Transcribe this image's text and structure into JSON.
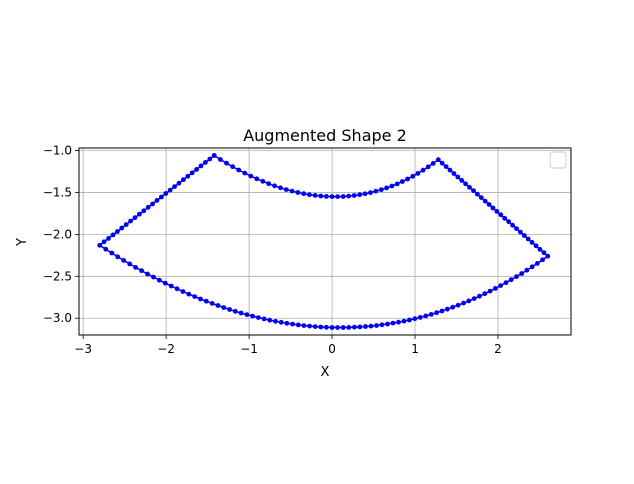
{
  "chart_data": {
    "type": "scatter",
    "title": "Augmented Shape 2",
    "xlabel": "X",
    "ylabel": "Y",
    "xlim": [
      -3.05,
      2.88
    ],
    "ylim": [
      -3.2,
      -0.97
    ],
    "xticks": [
      -3,
      -2,
      -1,
      0,
      1,
      2
    ],
    "xtick_labels": [
      "−3",
      "−2",
      "−1",
      "0",
      "1",
      "2"
    ],
    "yticks": [
      -1.0,
      -1.5,
      -2.0,
      -2.5,
      -3.0
    ],
    "ytick_labels": [
      "−1.0",
      "−1.5",
      "−2.0",
      "−2.5",
      "−3.0"
    ],
    "grid": true,
    "legend": {
      "placement": "upper right",
      "entries": []
    },
    "series": [
      {
        "color": "#0000ff",
        "marker": "circle",
        "line": "solid",
        "shape": "annular sector outline",
        "vertices": [
          {
            "label": "top-left",
            "x": -1.42,
            "y": -1.06
          },
          {
            "label": "top-right",
            "x": 1.28,
            "y": -1.11
          },
          {
            "label": "right",
            "x": 2.6,
            "y": -2.26
          },
          {
            "label": "left",
            "x": -2.8,
            "y": -2.13
          }
        ],
        "inner_arc_bottom": {
          "x": 0.0,
          "y": -1.55
        },
        "outer_arc_bottom": {
          "x": 0.0,
          "y": -3.11
        }
      }
    ]
  }
}
